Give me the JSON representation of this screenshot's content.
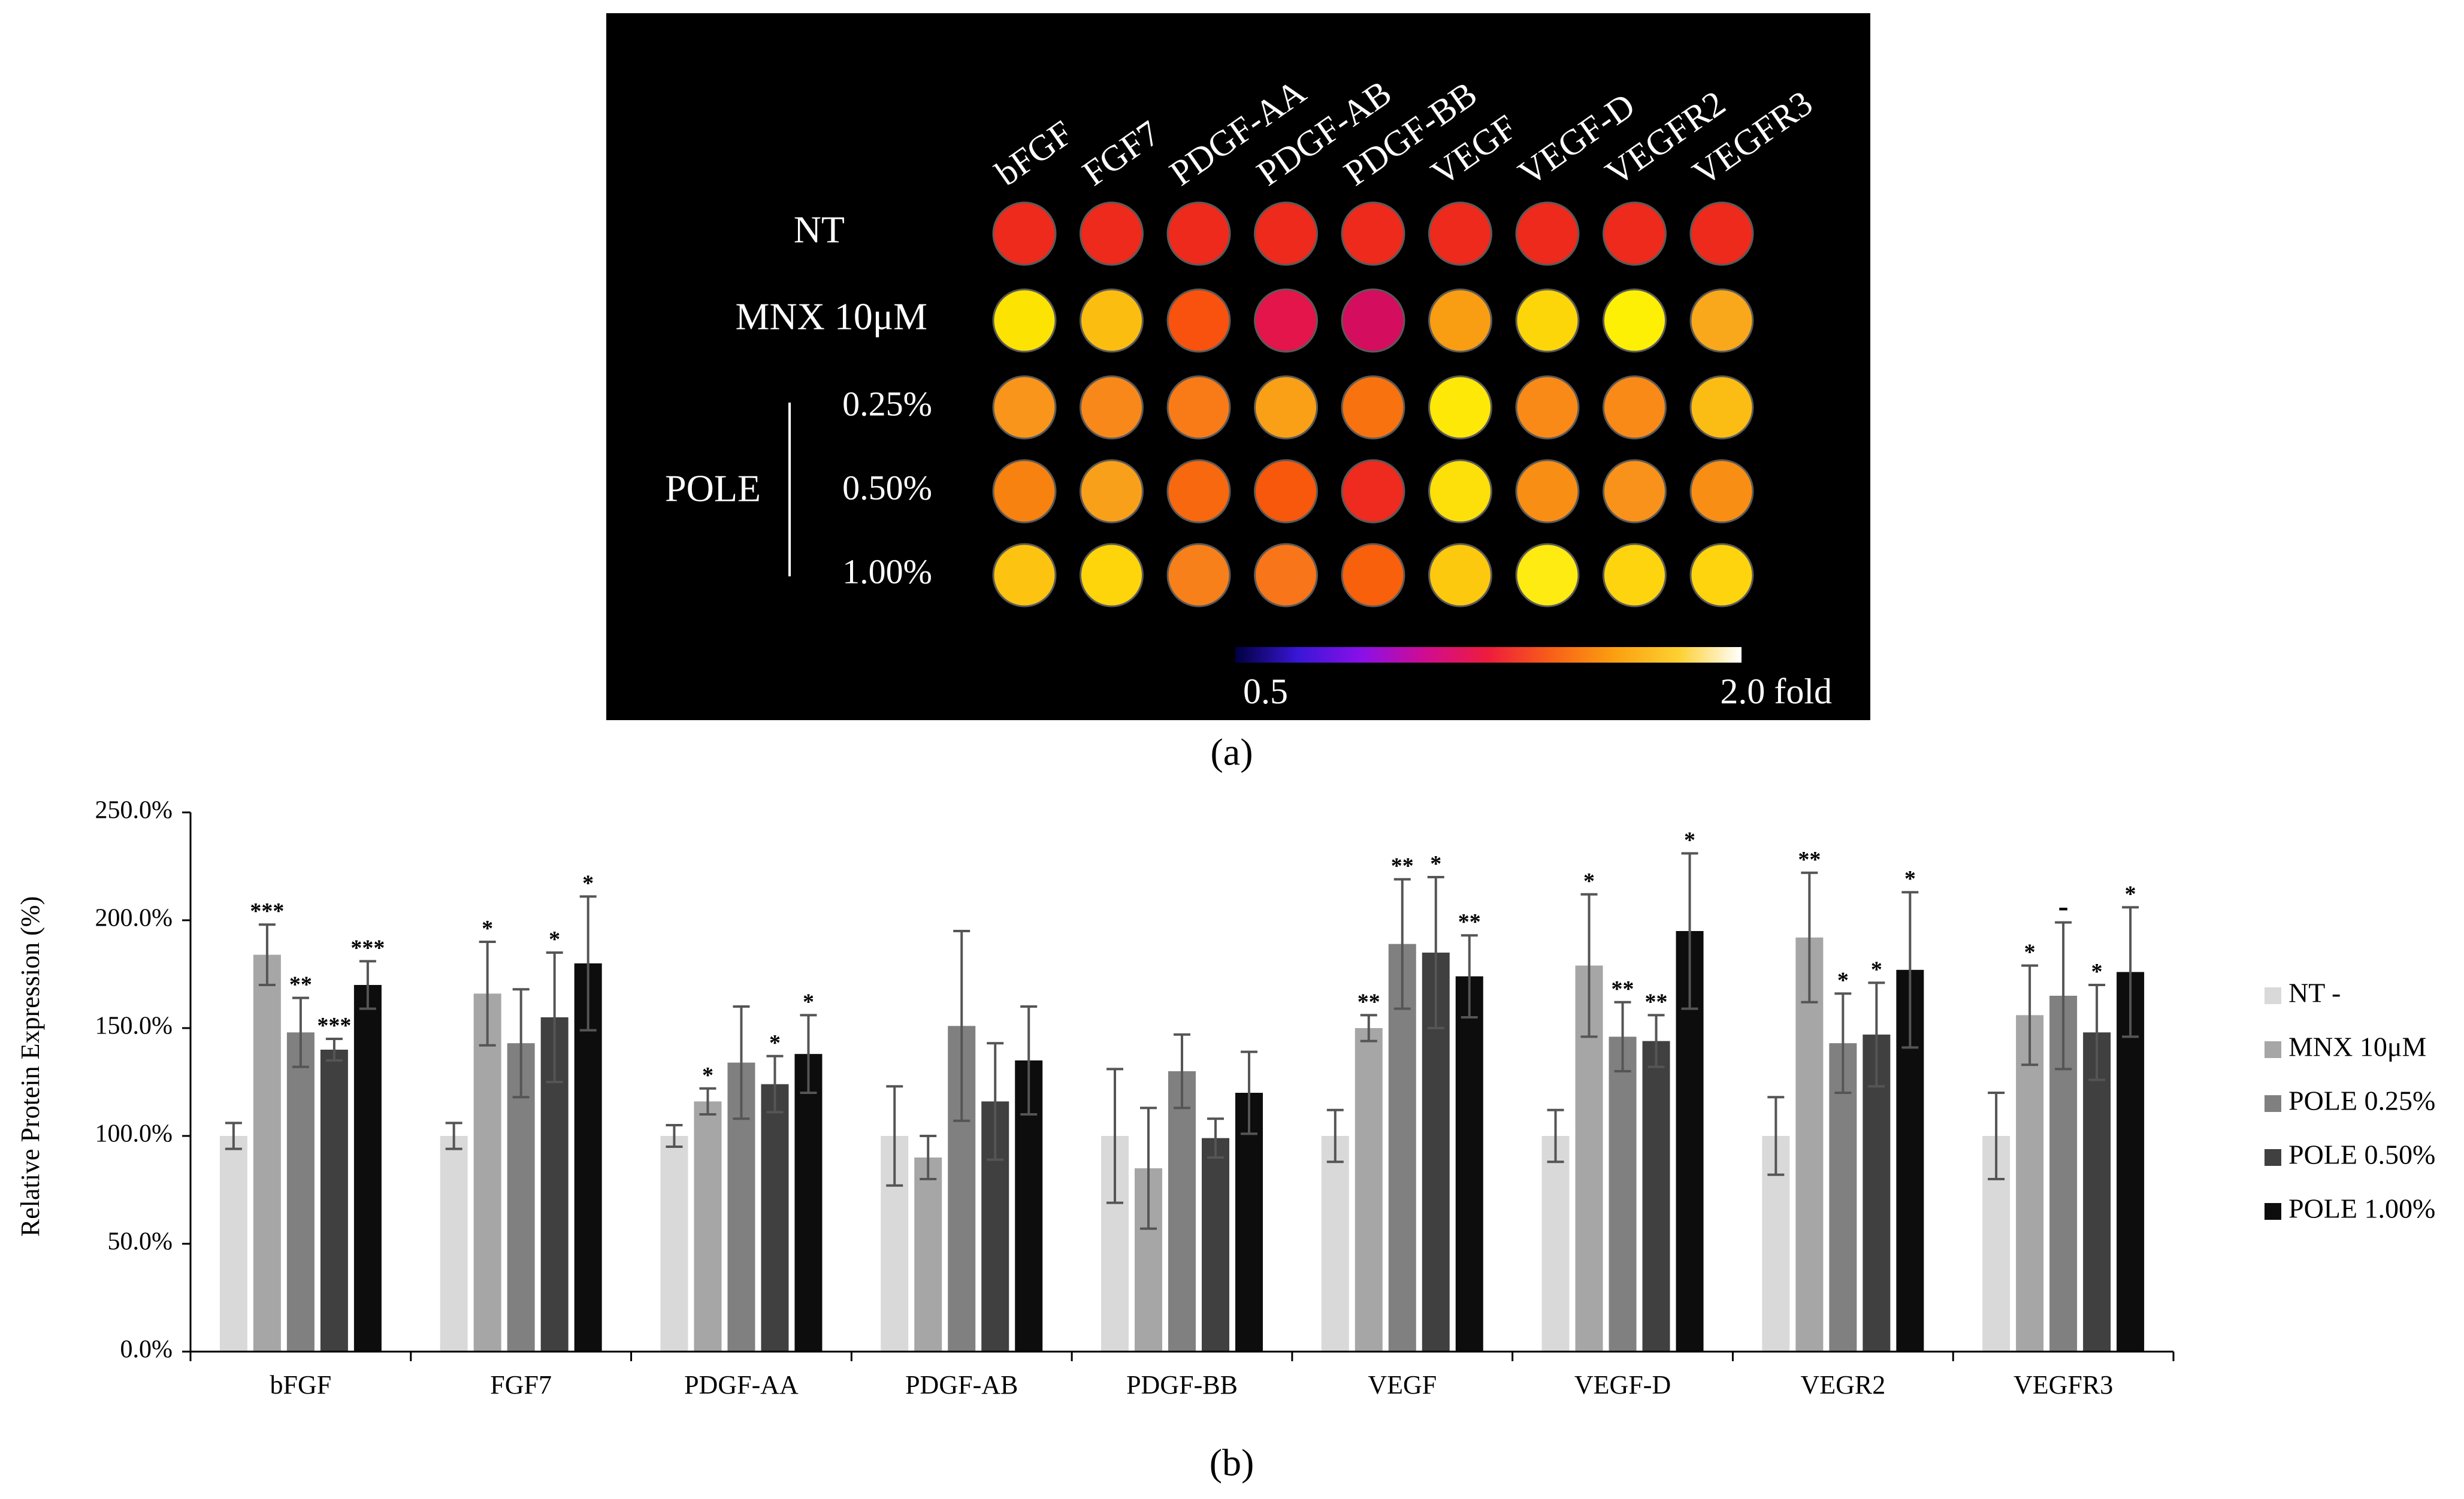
{
  "panel_a": {
    "caption": "(a)",
    "columns": [
      "bFGF",
      "FGF7",
      "PDGF-AA",
      "PDGF-AB",
      "PDGF-BB",
      "VEGF",
      "VEGF-D",
      "VEGFR2",
      "VEGFR3"
    ],
    "row_labels": {
      "nt": "NT",
      "mnx": "MNX 10μM",
      "pole": "POLE",
      "pole_concentrations": [
        "0.25%",
        "0.50%",
        "1.00%"
      ]
    },
    "cells": [
      [
        "#ee2a1c",
        "#ee2a1c",
        "#ee2a1c",
        "#ee2a1c",
        "#ee2a1c",
        "#ee2a1c",
        "#ee2a1c",
        "#ee2a1c",
        "#ee2a1c"
      ],
      [
        "#fde302",
        "#fbbd10",
        "#f9520e",
        "#e3154a",
        "#d40d5f",
        "#f99d13",
        "#fdd609",
        "#fef004",
        "#f8a81a"
      ],
      [
        "#f9951a",
        "#f9881b",
        "#f87b18",
        "#f9a017",
        "#f8720f",
        "#fde807",
        "#f98a18",
        "#f98a18",
        "#fbbd14"
      ],
      [
        "#f8820f",
        "#f9a01a",
        "#f8680e",
        "#f8580c",
        "#ef2a1e",
        "#fde00a",
        "#f98e15",
        "#f9921a",
        "#f98e15"
      ],
      [
        "#fcc310",
        "#fdd50a",
        "#f8801a",
        "#f8751a",
        "#f8600c",
        "#fcc90e",
        "#fdeb12",
        "#fdd40d",
        "#fdd40d"
      ]
    ],
    "colorbar": {
      "min_label": "0.5",
      "max_label": "2.0 fold",
      "stops": [
        "#000040",
        "#3a16d8",
        "#8a10e8",
        "#d00c90",
        "#ee1c3c",
        "#f86018",
        "#fba010",
        "#fdd030",
        "#ffffff"
      ]
    }
  },
  "chart_data": {
    "type": "bar",
    "caption": "(b)",
    "title": "",
    "xlabel": "",
    "ylabel": "Relative Protein Expression (%)",
    "ylim": [
      0,
      250
    ],
    "yticks": [
      0,
      50,
      100,
      150,
      200,
      250
    ],
    "ytick_labels": [
      "0.0%",
      "50.0%",
      "100.0%",
      "150.0%",
      "200.0%",
      "250.0%"
    ],
    "legend_position": "right",
    "categories": [
      "bFGF",
      "FGF7",
      "PDGF-AA",
      "PDGF-AB",
      "PDGF-BB",
      "VEGF",
      "VEGF-D",
      "VEGR2",
      "VEGFR3"
    ],
    "series": [
      {
        "name": "NT -",
        "color": "#d9d9d9",
        "values": [
          100,
          100,
          100,
          100,
          100,
          100,
          100,
          100,
          100
        ],
        "errors": [
          6,
          6,
          5,
          23,
          31,
          12,
          12,
          18,
          20
        ],
        "labels": [
          "",
          "",
          "",
          "",
          "",
          "",
          "",
          "",
          ""
        ]
      },
      {
        "name": "MNX 10μM",
        "color": "#a6a6a6",
        "values": [
          184,
          166,
          116,
          90,
          85,
          150,
          179,
          192,
          156
        ],
        "errors": [
          14,
          24,
          6,
          10,
          28,
          6,
          33,
          30,
          23
        ],
        "labels": [
          "***",
          "*",
          "*",
          "",
          "",
          "**",
          "*",
          "**",
          "*"
        ]
      },
      {
        "name": "POLE 0.25%",
        "color": "#808080",
        "values": [
          148,
          143,
          134,
          151,
          130,
          189,
          146,
          143,
          165
        ],
        "errors": [
          16,
          25,
          26,
          44,
          17,
          30,
          16,
          23,
          34
        ],
        "labels": [
          "**",
          "",
          "",
          "",
          "",
          "**",
          "**",
          "*",
          "-"
        ]
      },
      {
        "name": "POLE 0.50%",
        "color": "#404040",
        "values": [
          140,
          155,
          124,
          116,
          99,
          185,
          144,
          147,
          148
        ],
        "errors": [
          5,
          30,
          13,
          27,
          9,
          35,
          12,
          24,
          22
        ],
        "labels": [
          "***",
          "*",
          "*",
          "",
          "",
          "*",
          "**",
          "*",
          "*"
        ]
      },
      {
        "name": "POLE 1.00%",
        "color": "#0d0d0d",
        "values": [
          170,
          180,
          138,
          135,
          120,
          174,
          195,
          177,
          176
        ],
        "errors": [
          11,
          31,
          18,
          25,
          19,
          19,
          36,
          36,
          30
        ],
        "labels": [
          "***",
          "*",
          "*",
          "",
          "",
          "**",
          "*",
          "*",
          "*"
        ]
      }
    ]
  }
}
